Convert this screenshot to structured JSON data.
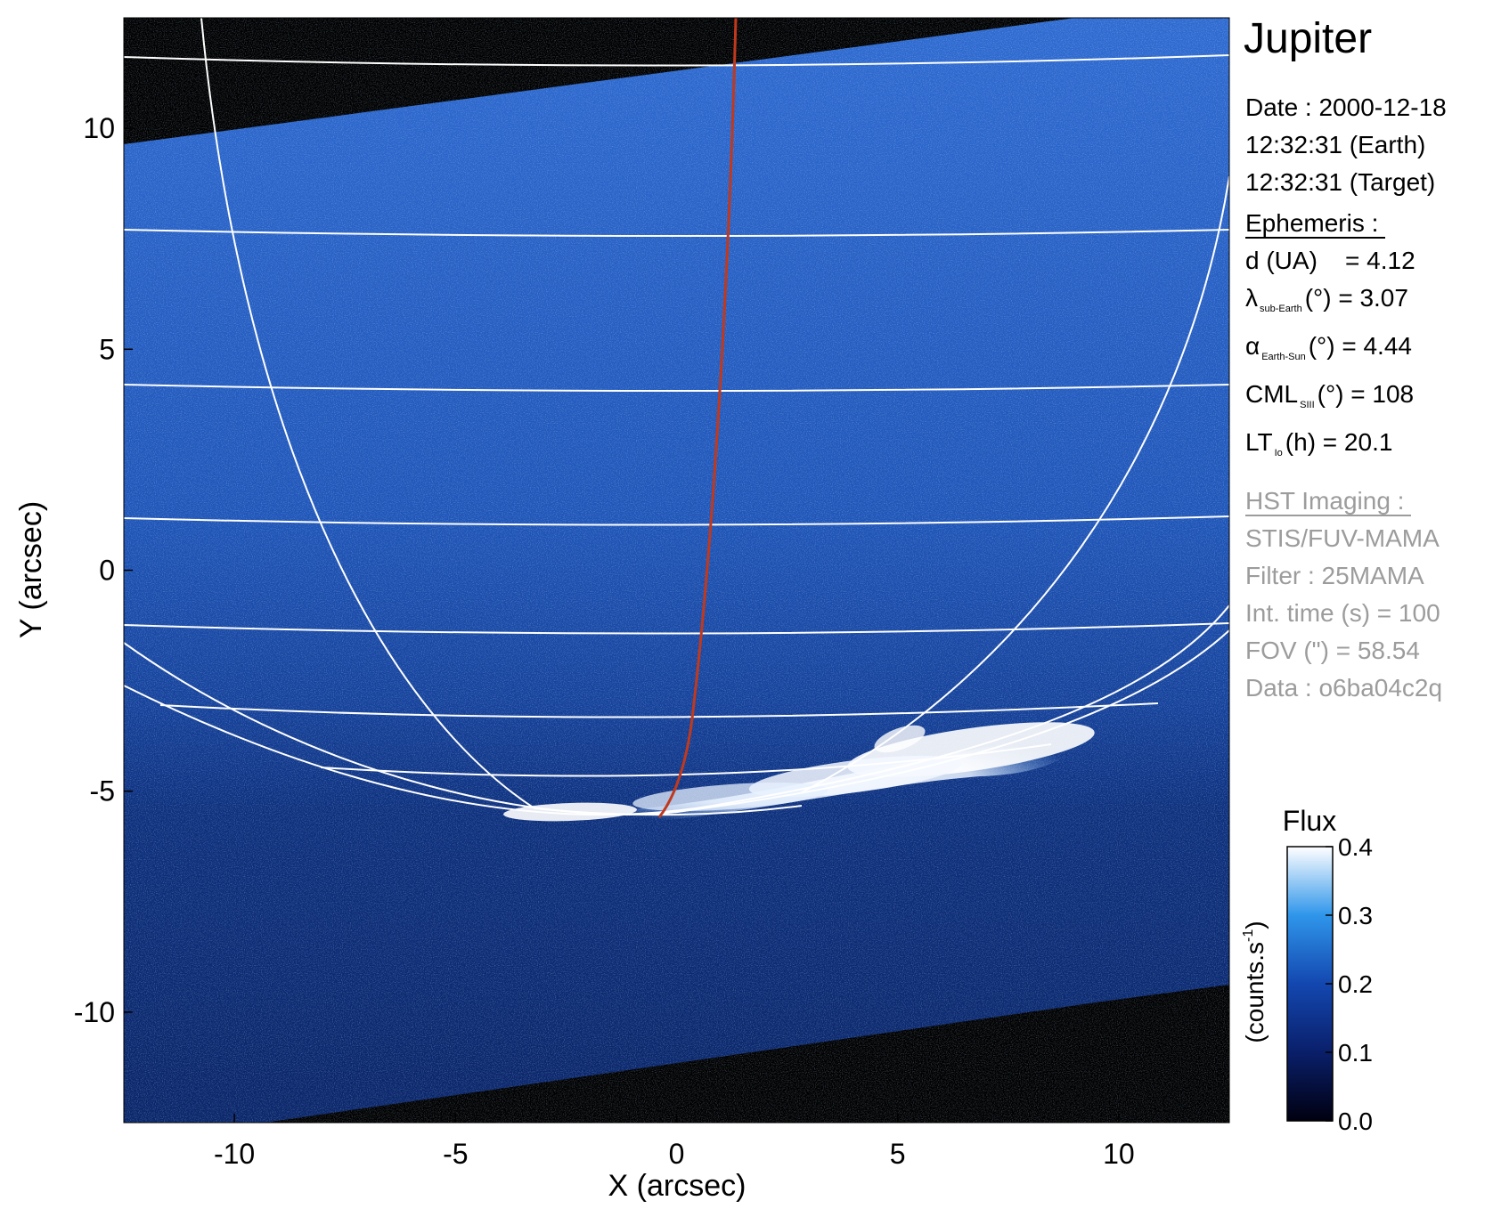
{
  "chart_data": {
    "type": "heatmap",
    "title": "Jupiter",
    "xlabel": "X (arcsec)",
    "ylabel": "Y (arcsec)",
    "xlim": [
      -12.5,
      12.5
    ],
    "ylim": [
      -12.5,
      12.5
    ],
    "x_ticks": [
      "-10",
      "-5",
      "0",
      "5",
      "10"
    ],
    "y_ticks": [
      "10",
      "5",
      "0",
      "-5",
      "-10"
    ],
    "x_tick_values": [
      -10,
      -5,
      0,
      5,
      10
    ],
    "y_tick_values": [
      10,
      5,
      0,
      -5,
      -10
    ],
    "colorbar": {
      "title": "Flux",
      "label": "(counts.s",
      "label_sup": "-1",
      "label_close": ")",
      "range": [
        0.0,
        0.4
      ],
      "ticks": [
        "0.4",
        "0.3",
        "0.2",
        "0.1",
        "0.0"
      ],
      "tick_values": [
        0.4,
        0.3,
        0.2,
        0.1,
        0.0
      ]
    },
    "colors": {
      "background": "#000000",
      "disk": "#1a4fb0",
      "aurora": "#ffffff",
      "grid": "#ffffff",
      "meridian": "#c0391d"
    }
  },
  "info": {
    "date_line": "Date : 2000-12-18",
    "earth_time": "12:32:31 (Earth)",
    "target_time": "12:32:31 (Target)",
    "ephemeris_title": "Ephemeris :",
    "d_label": "d (UA)",
    "d_value": "= 4.12",
    "lambda_symbol": "λ",
    "lambda_sub": "sub-Earth",
    "lambda_rest": "(°) = 3.07",
    "alpha_symbol": "α",
    "alpha_sub": "Earth-Sun",
    "alpha_rest": "(°) = 4.44",
    "cml_symbol": "CML",
    "cml_sub": "SIII",
    "cml_rest": "(°) = 108",
    "lt_symbol": "LT",
    "lt_sub": "Io",
    "lt_rest": "(h) = 20.1",
    "hst_title": "HST Imaging :",
    "instrument": "STIS/FUV-MAMA",
    "filter": "Filter : 25MAMA",
    "int_time": "Int. time (s) = 100",
    "fov": "FOV (\") = 58.54",
    "data_id": "Data : o6ba04c2q"
  }
}
